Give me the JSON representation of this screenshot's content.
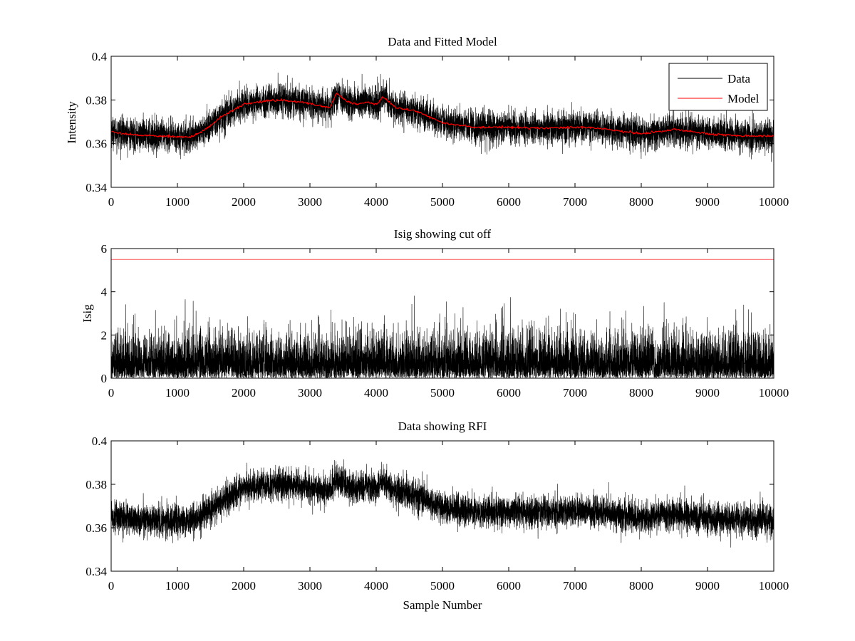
{
  "chart_data": [
    {
      "type": "line",
      "title": "Data and Fitted Model",
      "xlabel": "",
      "ylabel": "Intensity",
      "xlim": [
        0,
        10000
      ],
      "ylim": [
        0.34,
        0.4
      ],
      "xticks": [
        0,
        1000,
        2000,
        3000,
        4000,
        5000,
        6000,
        7000,
        8000,
        9000,
        10000
      ],
      "xtick_labels": [
        "0",
        "1000",
        "2000",
        "3000",
        "4000",
        "5000",
        "6000",
        "7000",
        "8000",
        "9000",
        "10000"
      ],
      "yticks": [
        0.34,
        0.36,
        0.38,
        0.4
      ],
      "ytick_labels": [
        "0.34",
        "0.36",
        "0.38",
        "0.4"
      ],
      "grid": false,
      "legend": {
        "position": "top-right",
        "entries": [
          "Data",
          "Model"
        ]
      },
      "series": [
        {
          "name": "Data",
          "color": "#000000",
          "style": "noisy",
          "n_points": 10000,
          "noise_std": 0.0035,
          "baseline": {
            "x": [
              0,
              300,
              700,
              1200,
              1400,
              1700,
              2000,
              2300,
              2600,
              2900,
              3200,
              3300,
              3400,
              3550,
              3700,
              3850,
              4000,
              4100,
              4300,
              4600,
              5000,
              5500,
              6000,
              6500,
              7000,
              7200,
              7500,
              8000,
              8500,
              9000,
              9500,
              10000
            ],
            "y": [
              0.3655,
              0.364,
              0.3635,
              0.363,
              0.366,
              0.373,
              0.378,
              0.3795,
              0.38,
              0.379,
              0.377,
              0.3765,
              0.383,
              0.3795,
              0.378,
              0.379,
              0.378,
              0.3815,
              0.3765,
              0.375,
              0.3695,
              0.3675,
              0.3675,
              0.367,
              0.3675,
              0.3675,
              0.3665,
              0.3645,
              0.3665,
              0.3645,
              0.3635,
              0.3635
            ]
          }
        },
        {
          "name": "Model",
          "color": "#ff0000",
          "style": "smooth",
          "x": [
            0,
            300,
            700,
            1200,
            1400,
            1700,
            2000,
            2300,
            2600,
            2650,
            2900,
            3200,
            3300,
            3400,
            3550,
            3700,
            3850,
            4000,
            4100,
            4300,
            4600,
            5000,
            5500,
            6000,
            6500,
            7000,
            7200,
            7500,
            8000,
            8500,
            9000,
            9500,
            10000
          ],
          "y": [
            0.3655,
            0.364,
            0.3635,
            0.363,
            0.366,
            0.373,
            0.378,
            0.3795,
            0.38,
            0.3795,
            0.379,
            0.377,
            0.3765,
            0.383,
            0.3795,
            0.378,
            0.379,
            0.378,
            0.3815,
            0.3765,
            0.375,
            0.3695,
            0.3675,
            0.3675,
            0.367,
            0.3675,
            0.3675,
            0.3665,
            0.3645,
            0.3665,
            0.3645,
            0.3635,
            0.3635
          ]
        }
      ]
    },
    {
      "type": "line",
      "title": "Isig showing cut off",
      "xlabel": "",
      "ylabel": "Isig",
      "xlim": [
        0,
        10000
      ],
      "ylim": [
        0,
        6
      ],
      "xticks": [
        0,
        1000,
        2000,
        3000,
        4000,
        5000,
        6000,
        7000,
        8000,
        9000,
        10000
      ],
      "xtick_labels": [
        "0",
        "1000",
        "2000",
        "3000",
        "4000",
        "5000",
        "6000",
        "7000",
        "8000",
        "9000",
        "10000"
      ],
      "yticks": [
        0,
        2,
        4,
        6
      ],
      "ytick_labels": [
        "0",
        "2",
        "4",
        "6"
      ],
      "grid": false,
      "series": [
        {
          "name": "",
          "color": "#000000",
          "style": "abs-noise",
          "n_points": 10000,
          "typical_max": 2.5,
          "peak_max": 4.1
        },
        {
          "name": "",
          "color": "#ff0000",
          "style": "constant",
          "x": [
            0,
            10000
          ],
          "y": [
            5.5,
            5.5
          ]
        }
      ]
    },
    {
      "type": "line",
      "title": "Data showing RFI",
      "xlabel": "Sample Number",
      "ylabel": "",
      "xlim": [
        0,
        10000
      ],
      "ylim": [
        0.34,
        0.4
      ],
      "xticks": [
        0,
        1000,
        2000,
        3000,
        4000,
        5000,
        6000,
        7000,
        8000,
        9000,
        10000
      ],
      "xtick_labels": [
        "0",
        "1000",
        "2000",
        "3000",
        "4000",
        "5000",
        "6000",
        "7000",
        "8000",
        "9000",
        "10000"
      ],
      "yticks": [
        0.34,
        0.36,
        0.38,
        0.4
      ],
      "ytick_labels": [
        "0.34",
        "0.36",
        "0.38",
        "0.4"
      ],
      "grid": false,
      "series": [
        {
          "name": "",
          "color": "#000000",
          "style": "noisy",
          "n_points": 10000,
          "noise_std": 0.0035,
          "baseline": {
            "x": [
              0,
              300,
              700,
              1200,
              1400,
              1700,
              2000,
              2300,
              2600,
              2900,
              3200,
              3300,
              3400,
              3550,
              3700,
              3850,
              4000,
              4100,
              4300,
              4600,
              5000,
              5500,
              6000,
              6500,
              7000,
              7200,
              7500,
              8000,
              8500,
              9000,
              9500,
              10000
            ],
            "y": [
              0.3655,
              0.364,
              0.3635,
              0.363,
              0.366,
              0.373,
              0.378,
              0.3795,
              0.38,
              0.379,
              0.377,
              0.3765,
              0.383,
              0.3795,
              0.378,
              0.379,
              0.378,
              0.3815,
              0.3765,
              0.375,
              0.3695,
              0.3675,
              0.3675,
              0.367,
              0.3675,
              0.3675,
              0.3665,
              0.3645,
              0.3665,
              0.3645,
              0.3635,
              0.3635
            ]
          }
        }
      ]
    }
  ]
}
